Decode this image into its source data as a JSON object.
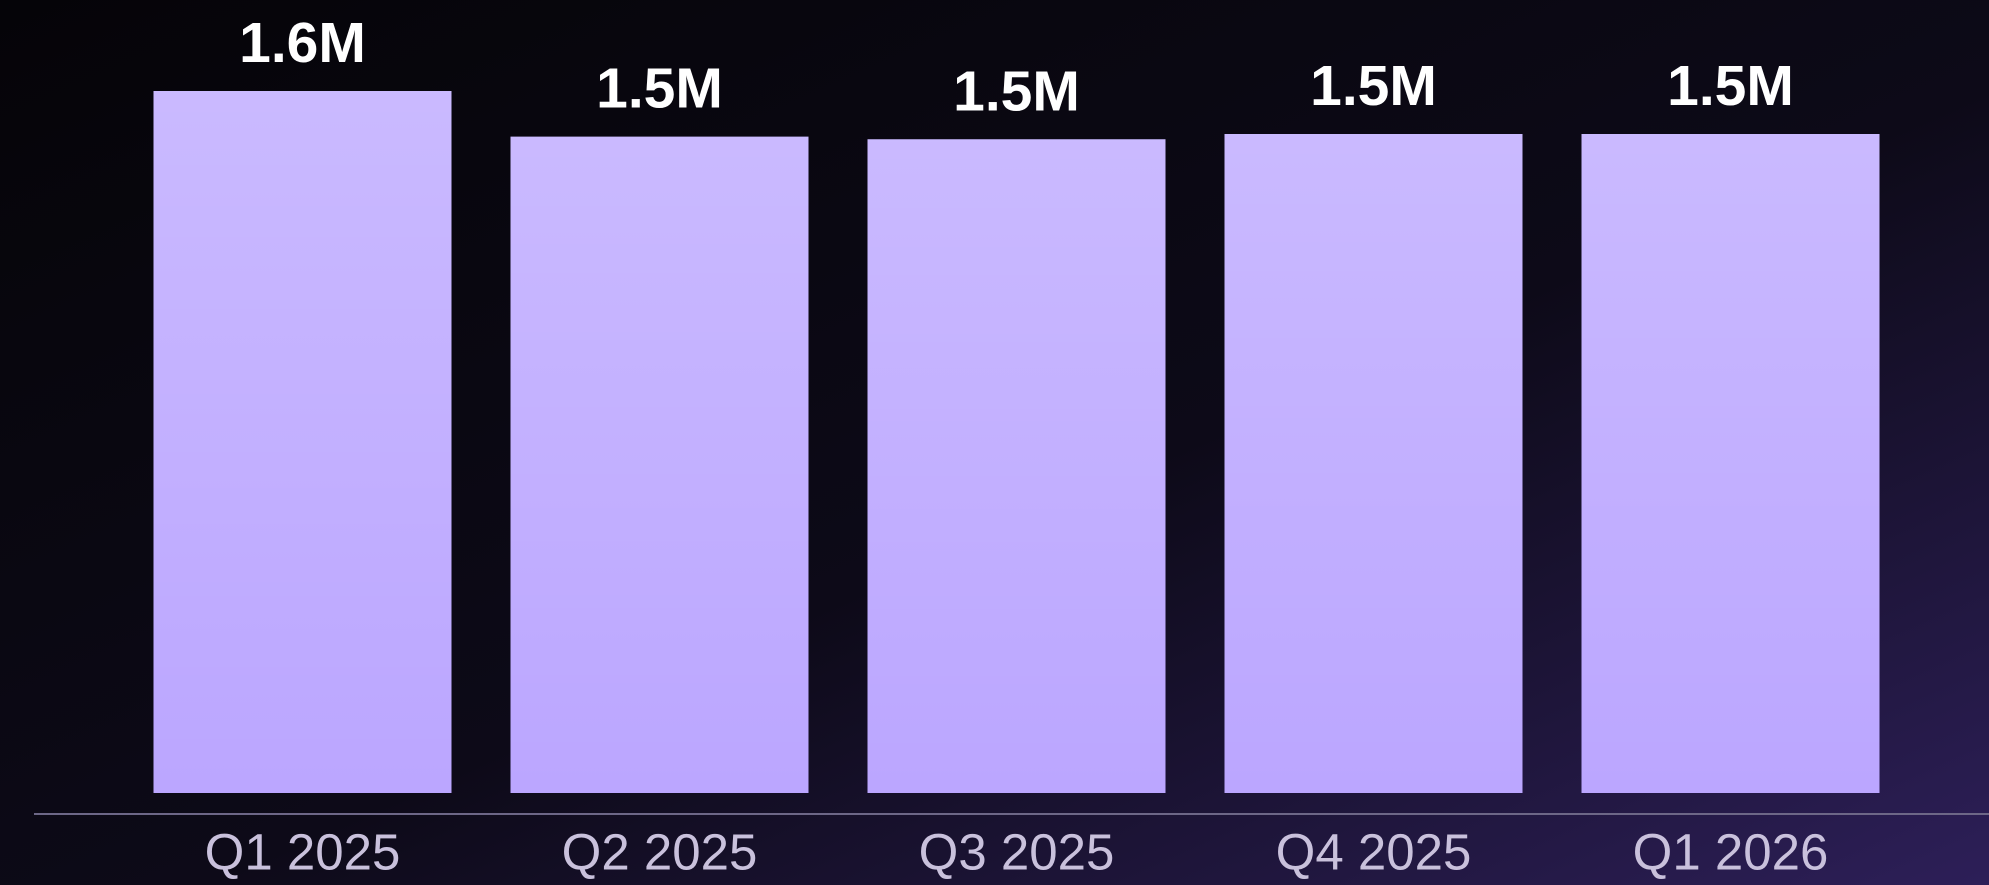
{
  "chart_data": {
    "type": "bar",
    "categories": [
      "Q1 2025",
      "Q2 2025",
      "Q3 2025",
      "Q4 2025",
      "Q1 2026"
    ],
    "values": [
      1600000,
      1496000,
      1490000,
      1502000,
      1502000
    ],
    "value_labels": [
      "1.6M",
      "1.5M",
      "1.5M",
      "1.5M",
      "1.5M"
    ],
    "color": "#bba6ff"
  }
}
